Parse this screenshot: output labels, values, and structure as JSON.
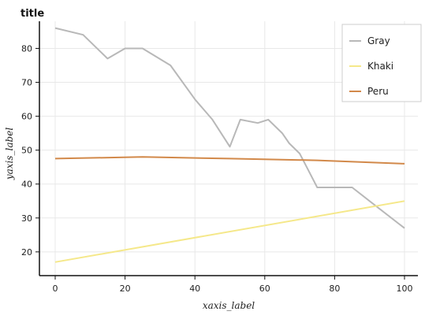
{
  "chart_data": {
    "type": "line",
    "title": "title",
    "xlabel": "xaxis_label",
    "ylabel": "yaxis_label",
    "xlim": [
      0,
      100
    ],
    "ylim": [
      13,
      88
    ],
    "x_ticks": [
      0,
      20,
      40,
      60,
      80,
      100
    ],
    "y_ticks": [
      20,
      30,
      40,
      50,
      60,
      70,
      80
    ],
    "grid": true,
    "legend_position": "top-right",
    "series": [
      {
        "name": "Gray",
        "color": "#b8b8b8",
        "x": [
          0,
          8,
          15,
          20,
          25,
          33,
          40,
          45,
          50,
          53,
          58,
          61,
          65,
          67,
          70,
          72,
          75,
          80,
          85,
          90,
          100
        ],
        "y": [
          86,
          84,
          77,
          80,
          80,
          75,
          65,
          59,
          51,
          59,
          58,
          59,
          55,
          52,
          49,
          45,
          39,
          39,
          39,
          35,
          27
        ]
      },
      {
        "name": "Khaki",
        "color": "#f5e88a",
        "x": [
          0,
          100
        ],
        "y": [
          17,
          35
        ]
      },
      {
        "name": "Peru",
        "color": "#d2894a",
        "x": [
          0,
          25,
          50,
          75,
          100
        ],
        "y": [
          47.5,
          48,
          47.5,
          47,
          46
        ]
      }
    ]
  }
}
